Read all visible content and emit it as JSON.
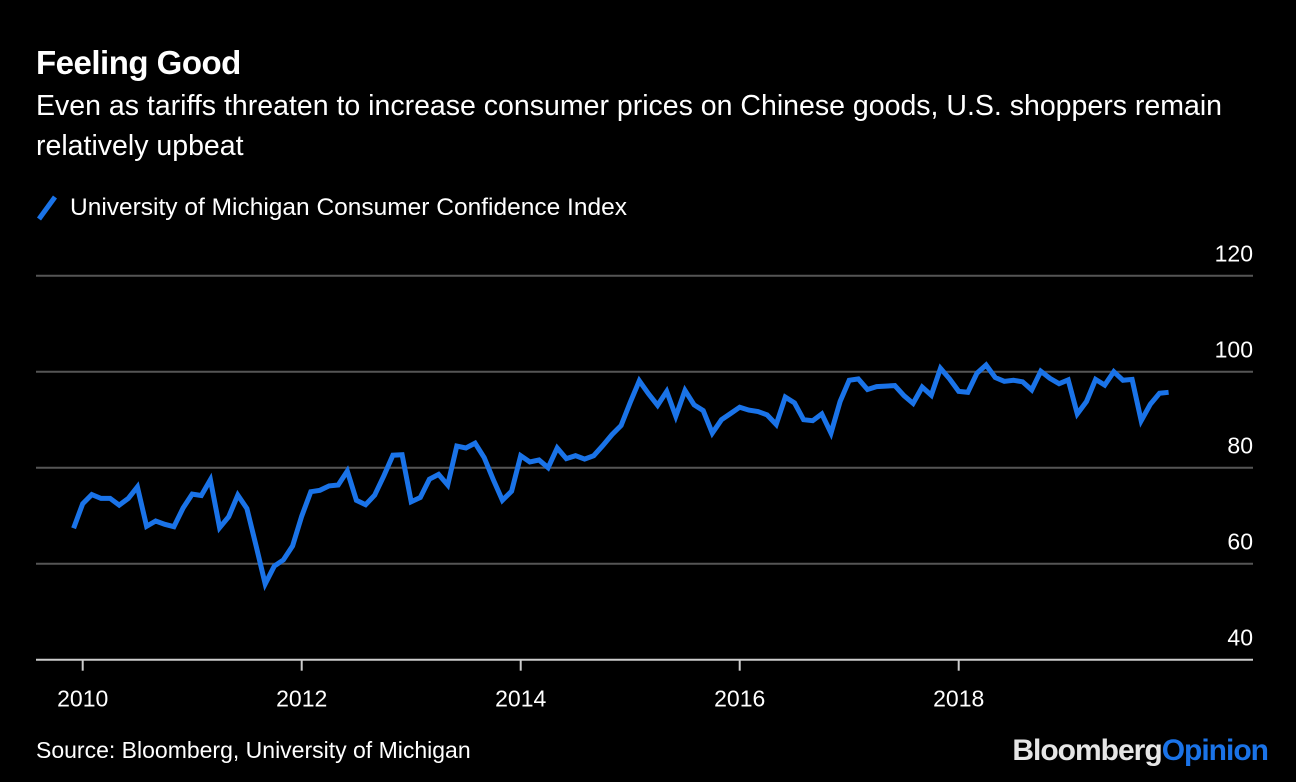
{
  "header": {
    "title": "Feeling Good",
    "subtitle": "Even as tariffs threaten to increase consumer prices on Chinese goods, U.S. shoppers remain relatively upbeat"
  },
  "footer": {
    "source": "Source: Bloomberg, University of Michigan",
    "logo_part1": "Bloomberg",
    "logo_part2": "Opinion"
  },
  "colors": {
    "series": "#1a73e8",
    "grid": "#555555",
    "axis": "#cccccc",
    "background": "#000000"
  },
  "chart_data": {
    "type": "line",
    "title": "Feeling Good",
    "subtitle": "Even as tariffs threaten to increase consumer prices on Chinese goods, U.S. shoppers remain relatively upbeat",
    "xlabel": "",
    "ylabel": "",
    "ylim": [
      40,
      120
    ],
    "yticks": [
      40,
      60,
      80,
      100,
      120
    ],
    "xticks": [
      "2010",
      "2012",
      "2014",
      "2016",
      "2018"
    ],
    "grid": true,
    "legend_position": "top-left",
    "y_axis_side": "right",
    "start_month": "2009-11",
    "series": [
      {
        "name": "University of Michigan Consumer Confidence Index",
        "color": "#1a73e8",
        "values": [
          67.4,
          72.5,
          74.4,
          73.6,
          73.6,
          72.2,
          73.6,
          76.0,
          67.8,
          68.9,
          68.2,
          67.7,
          71.6,
          74.5,
          74.2,
          77.5,
          67.5,
          69.8,
          74.3,
          71.5,
          63.7,
          55.8,
          59.5,
          60.8,
          63.7,
          69.9,
          75.0,
          75.3,
          76.2,
          76.4,
          79.3,
          73.2,
          72.3,
          74.3,
          78.3,
          82.6,
          82.7,
          72.9,
          73.8,
          77.6,
          78.6,
          76.4,
          84.5,
          84.1,
          85.1,
          82.1,
          77.5,
          73.2,
          75.1,
          82.5,
          81.2,
          81.6,
          80.0,
          84.1,
          81.9,
          82.5,
          81.8,
          82.5,
          84.6,
          86.9,
          88.8,
          93.6,
          98.1,
          95.4,
          93.0,
          95.9,
          90.7,
          96.1,
          93.1,
          91.9,
          87.2,
          90.0,
          91.3,
          92.6,
          92.0,
          91.7,
          91.0,
          89.0,
          94.7,
          93.5,
          90.0,
          89.8,
          91.2,
          87.2,
          93.8,
          98.2,
          98.5,
          96.3,
          96.9,
          97.0,
          97.1,
          95.0,
          93.4,
          96.8,
          95.1,
          100.7,
          98.5,
          95.9,
          95.7,
          99.7,
          101.4,
          98.8,
          98.0,
          98.2,
          97.9,
          96.2,
          100.1,
          98.6,
          97.5,
          98.3,
          91.2,
          93.8,
          98.4,
          97.2,
          100.0,
          98.2,
          98.4,
          89.8,
          93.2,
          95.5,
          95.7
        ]
      }
    ]
  }
}
